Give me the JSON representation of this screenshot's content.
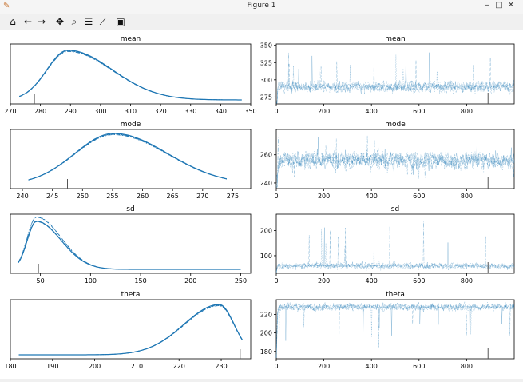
{
  "window": {
    "title": "Figure 1",
    "app_icon": "matplotlib-icon",
    "controls": [
      "minimize-icon",
      "maximize-icon",
      "close-icon"
    ]
  },
  "toolbar": {
    "buttons": [
      "home-icon",
      "back-icon",
      "forward-icon",
      "pan-icon",
      "zoom-icon",
      "configure-subplots-icon",
      "edit-axis-icon",
      "save-icon"
    ]
  },
  "colors": {
    "line": "#1f77b4",
    "axes": "#000000",
    "bg": "#ffffff"
  },
  "chart_data": [
    {
      "type": "line",
      "name": "mean-density",
      "title": "mean",
      "xlim": [
        270,
        350
      ],
      "xticks": [
        270,
        280,
        290,
        300,
        310,
        320,
        330,
        340,
        350
      ],
      "peak": 290,
      "spread": 7,
      "skew": 3.2,
      "start": 273,
      "end": 347,
      "marker": 278
    },
    {
      "type": "line",
      "name": "mean-trace",
      "title": "mean",
      "xlim": [
        0,
        1000
      ],
      "ylim": [
        265,
        352
      ],
      "xticks": [
        0,
        200,
        400,
        600,
        800
      ],
      "yticks": [
        275,
        300,
        325,
        350
      ],
      "center": 290,
      "noise": 8,
      "spike_up": 50,
      "spike_down": 12,
      "marker": 890
    },
    {
      "type": "line",
      "name": "mode-density",
      "title": "mode",
      "xlim": [
        238,
        278
      ],
      "xticks": [
        240,
        245,
        250,
        255,
        260,
        265,
        270,
        275
      ],
      "peak": 256,
      "spread": 6.5,
      "skew": 1.1,
      "start": 241,
      "end": 274,
      "marker": 247.5
    },
    {
      "type": "line",
      "name": "mode-trace",
      "title": "mode",
      "xlim": [
        0,
        1000
      ],
      "ylim": [
        236,
        278
      ],
      "xticks": [
        0,
        200,
        400,
        600,
        800
      ],
      "yticks": [
        240,
        260
      ],
      "center": 256,
      "noise": 6,
      "spike_up": 18,
      "spike_down": 14,
      "marker": 890
    },
    {
      "type": "line",
      "name": "sd-density",
      "title": "sd",
      "xlim": [
        20,
        260
      ],
      "xticks": [
        50,
        100,
        150,
        200,
        250
      ],
      "peak": 47,
      "spread": 9,
      "skew": 5,
      "start": 28,
      "end": 250,
      "marker": 48
    },
    {
      "type": "line",
      "name": "sd-trace",
      "title": "sd",
      "xlim": [
        0,
        1000
      ],
      "ylim": [
        30,
        265
      ],
      "xticks": [
        0,
        200,
        400,
        600,
        800
      ],
      "yticks": [
        100,
        200
      ],
      "center": 60,
      "noise": 12,
      "spike_up": 190,
      "spike_down": 20,
      "marker": 890
    },
    {
      "type": "line",
      "name": "theta-density",
      "title": "theta",
      "xlim": [
        180,
        237
      ],
      "xticks": [
        180,
        190,
        200,
        210,
        220,
        230
      ],
      "peak": 230,
      "spread": 3.5,
      "skew": -4,
      "start": 182,
      "end": 235,
      "marker": 234.5
    },
    {
      "type": "line",
      "name": "theta-trace",
      "title": "theta",
      "xlim": [
        0,
        1000
      ],
      "ylim": [
        172,
        236
      ],
      "xticks": [
        0,
        200,
        400,
        600,
        800
      ],
      "yticks": [
        180,
        200,
        220
      ],
      "center": 228,
      "noise": 4,
      "spike_up": 6,
      "spike_down": 45,
      "marker": 890
    }
  ]
}
